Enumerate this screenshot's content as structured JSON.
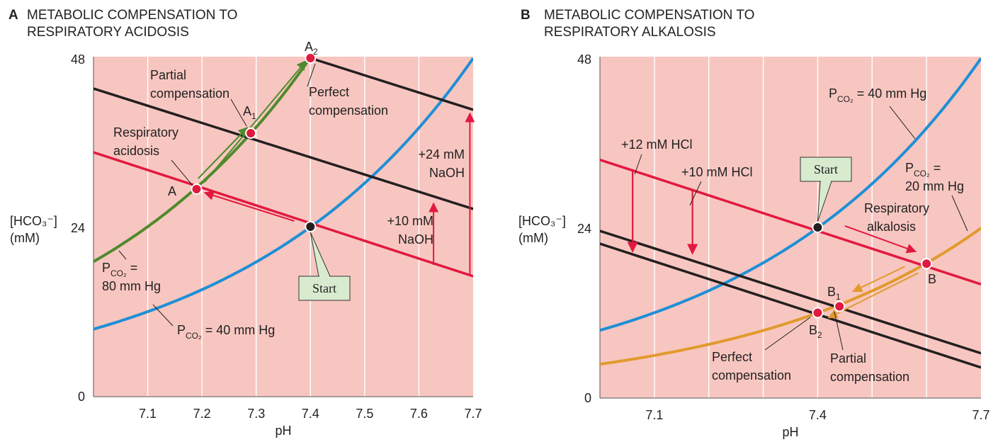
{
  "colors": {
    "background": "#f8c6c0",
    "grid": "#ffffff",
    "red_line": "#e2193f",
    "black_line": "#231f20",
    "blue_curve": "#1f8fd6",
    "green_curve": "#4f8a2d",
    "orange_curve": "#e19a2e",
    "point_fill": "#e2193f",
    "start_point": "#231f20",
    "callout_fill": "#d8ebcf"
  },
  "chart_data": [
    {
      "type": "line",
      "panel_letter": "A",
      "title_lines": [
        "METABOLIC COMPENSATION TO",
        "RESPIRATORY ACIDOSIS"
      ],
      "xlabel": "pH",
      "ylabel_lines": [
        "[HCO₃⁻]",
        "(mM)"
      ],
      "xlim": [
        7.0,
        7.7
      ],
      "ylim": [
        0,
        48
      ],
      "x_ticks": [
        7.1,
        7.2,
        7.3,
        7.4,
        7.5,
        7.6,
        7.7
      ],
      "x_tick_labels": [
        "7.1",
        "7.2",
        "7.3",
        "7.4",
        "7.5",
        "7.6",
        "7.7"
      ],
      "y_ticks": [
        0,
        24,
        48
      ],
      "y_tick_labels": [
        "0",
        "24",
        "48"
      ],
      "grid": "vertical",
      "series": [
        {
          "kind": "isopleth",
          "pco2": 40,
          "color": "blue",
          "label_main": "P",
          "label_sub": "CO₂",
          "label_rest": " = 40 mm Hg"
        },
        {
          "kind": "isopleth",
          "pco2": 80,
          "color": "green",
          "x_range": [
            7.0,
            7.4
          ],
          "label_lines": [
            "P",
            "80 mm Hg"
          ],
          "label_sub": "CO₂",
          "label_rest": " ="
        },
        {
          "kind": "buffer_line",
          "color": "red",
          "points": [
            [
              7.0,
              34.5
            ],
            [
              7.7,
              17.0
            ]
          ]
        },
        {
          "kind": "buffer_line",
          "color": "black",
          "points": [
            [
              7.0,
              43.5
            ],
            [
              7.7,
              26.5
            ]
          ]
        },
        {
          "kind": "buffer_line",
          "color": "black",
          "points": [
            [
              7.4,
              47.8
            ],
            [
              7.7,
              40.5
            ]
          ]
        }
      ],
      "points": [
        {
          "name": "A",
          "x": 7.19,
          "y": 29.3,
          "label": "A",
          "sub": ""
        },
        {
          "name": "A1",
          "x": 7.29,
          "y": 37.2,
          "label": "A",
          "sub": "1"
        },
        {
          "name": "A2",
          "x": 7.4,
          "y": 47.8,
          "label": "A",
          "sub": "2"
        },
        {
          "name": "Start",
          "x": 7.4,
          "y": 24.0,
          "label": "",
          "sub": "",
          "start": true
        }
      ],
      "annotations": [
        {
          "lines": [
            "Partial",
            "compensation"
          ]
        },
        {
          "lines": [
            "Perfect",
            "compensation"
          ]
        },
        {
          "lines": [
            "Respiratory",
            "acidosis"
          ]
        },
        {
          "lines": [
            "+10 mM",
            "NaOH"
          ]
        },
        {
          "lines": [
            "+24 mM",
            "NaOH"
          ]
        }
      ],
      "start_label": "Start"
    },
    {
      "type": "line",
      "panel_letter": "B",
      "title_lines": [
        "METABOLIC COMPENSATION TO",
        "RESPIRATORY ALKALOSIS"
      ],
      "xlabel": "pH",
      "ylabel_lines": [
        "[HCO₃⁻]",
        "(mM)"
      ],
      "xlim": [
        7.0,
        7.7
      ],
      "ylim": [
        0,
        48
      ],
      "x_ticks": [
        7.1,
        7.4,
        7.7
      ],
      "x_tick_labels": [
        "7.1",
        "7.4",
        "7.7"
      ],
      "y_ticks": [
        0,
        24,
        48
      ],
      "y_tick_labels": [
        "0",
        "24",
        "48"
      ],
      "grid": "vertical",
      "series": [
        {
          "kind": "isopleth",
          "pco2": 40,
          "color": "blue",
          "label_main": "P",
          "label_sub": "CO₂",
          "label_rest": " = 40 mm Hg"
        },
        {
          "kind": "isopleth",
          "pco2": 20,
          "color": "orange",
          "label_main": "P",
          "label_sub": "CO₂",
          "label_rest": " =",
          "label_line2": "20 mm Hg"
        },
        {
          "kind": "buffer_line",
          "color": "red",
          "points": [
            [
              7.0,
              33.5
            ],
            [
              7.7,
              16.0
            ]
          ]
        },
        {
          "kind": "buffer_line",
          "color": "black",
          "points": [
            [
              7.0,
              23.5
            ],
            [
              7.7,
              6.3
            ]
          ]
        },
        {
          "kind": "buffer_line",
          "color": "black",
          "points": [
            [
              7.0,
              21.7
            ],
            [
              7.7,
              4.3
            ]
          ]
        }
      ],
      "points": [
        {
          "name": "B",
          "x": 7.6,
          "y": 18.9,
          "label": "B",
          "sub": ""
        },
        {
          "name": "B1",
          "x": 7.44,
          "y": 12.9,
          "label": "B",
          "sub": "1"
        },
        {
          "name": "B2",
          "x": 7.4,
          "y": 12.0,
          "label": "B",
          "sub": "2"
        },
        {
          "name": "Start",
          "x": 7.4,
          "y": 24.0,
          "label": "",
          "sub": "",
          "start": true
        }
      ],
      "annotations": [
        {
          "lines": [
            "+12 mM HCl"
          ]
        },
        {
          "lines": [
            "+10 mM HCl"
          ]
        },
        {
          "lines": [
            "Respiratory",
            "alkalosis"
          ]
        },
        {
          "lines": [
            "Perfect",
            "compensation"
          ]
        },
        {
          "lines": [
            "Partial",
            "compensation"
          ]
        }
      ],
      "start_label": "Start"
    }
  ]
}
